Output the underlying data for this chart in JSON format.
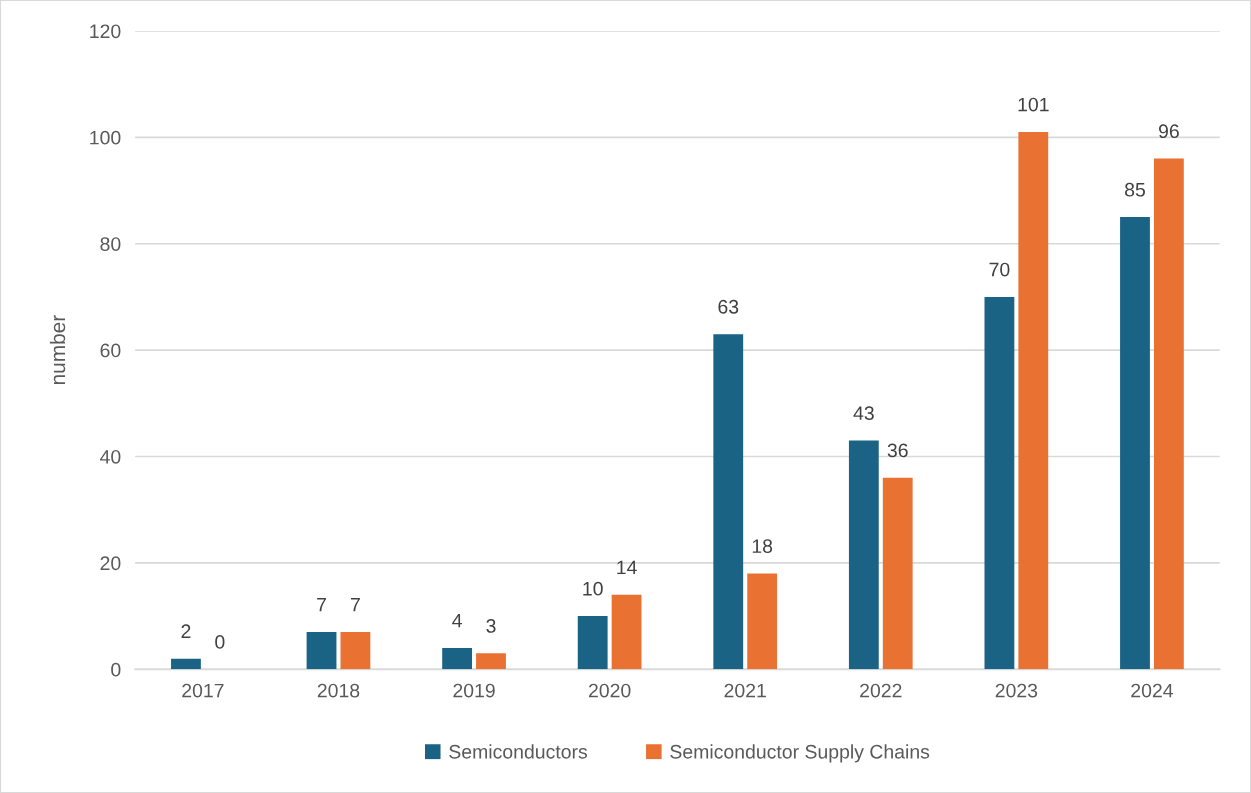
{
  "chart_data": {
    "type": "bar",
    "ylabel": "number",
    "categories": [
      "2017",
      "2018",
      "2019",
      "2020",
      "2021",
      "2022",
      "2023",
      "2024"
    ],
    "series": [
      {
        "name": "Semiconductors",
        "color": "#1a6385",
        "values": [
          2,
          7,
          4,
          10,
          63,
          43,
          70,
          85
        ]
      },
      {
        "name": "Semiconductor Supply Chains",
        "color": "#e97132",
        "values": [
          0,
          7,
          3,
          14,
          18,
          36,
          101,
          96
        ]
      }
    ],
    "ylim": [
      0,
      120
    ],
    "yticks": [
      0,
      20,
      40,
      60,
      80,
      100,
      120
    ],
    "grid": "y",
    "legend": "bottom",
    "data_labels": true
  }
}
